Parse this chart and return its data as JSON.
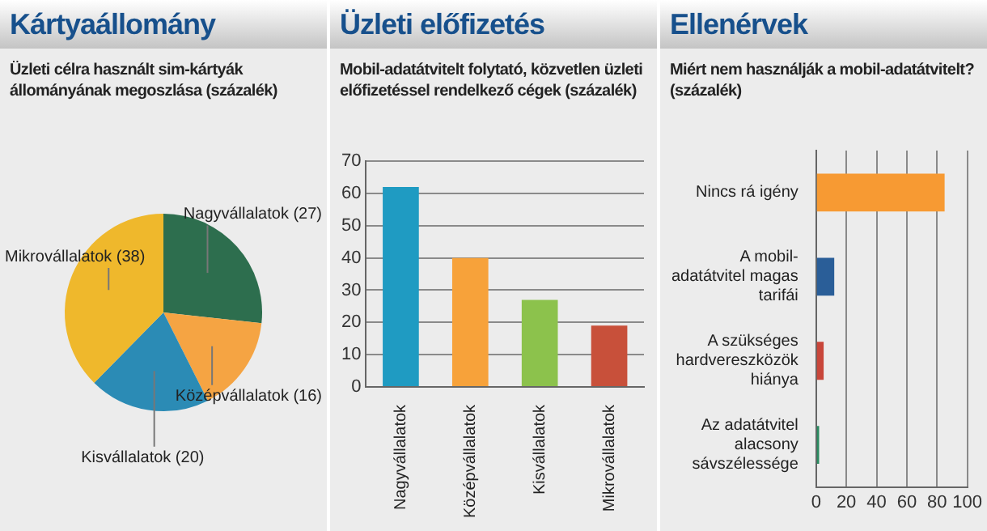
{
  "chart_data": [
    {
      "type": "pie",
      "title": "Kártyaállomány",
      "subtitle": "Üzleti célra használt sim-kártyák állományának megoszlása (százalék)",
      "categories": [
        "Nagyvállalatok (27)",
        "Középvállalatok (16)",
        "Kisvállalatok (20)",
        "Mikrovállalatok (38)"
      ],
      "values": [
        27,
        16,
        20,
        38
      ],
      "colors": [
        "#2d6e4e",
        "#f5a443",
        "#2b8bb5",
        "#efb82c"
      ],
      "legend": false
    },
    {
      "type": "bar",
      "title": "Üzleti előfizetés",
      "subtitle": "Mobil-adatátvitelt folytató, közvetlen üzleti előfizetéssel rendelkező cégek (százalék)",
      "categories": [
        "Nagyvállalatok",
        "Középvállalatok",
        "Kisvállalatok",
        "Mikrovállalatok"
      ],
      "values": [
        62,
        40,
        27,
        19
      ],
      "colors": [
        "#1f9bc2",
        "#f7a23a",
        "#8cc24c",
        "#c8503a"
      ],
      "ylim": [
        0,
        70
      ],
      "yticks": [
        0,
        10,
        20,
        30,
        40,
        50,
        60,
        70
      ],
      "grid": "y",
      "legend": false
    },
    {
      "type": "bar",
      "orientation": "horizontal",
      "title": "Ellenérvek",
      "subtitle": "Miért nem használják a mobil-adatátvitelt? (százalék)",
      "categories": [
        "Nincs rá igény",
        "A mobil-adatátvitel magas tarifái",
        "A szükséges hardvereszközök hiánya",
        "Az adatátvitel alacsony sávszélessége"
      ],
      "values": [
        85,
        12,
        5,
        2
      ],
      "colors": [
        "#f79a33",
        "#2a5e98",
        "#c8463a",
        "#2a8a60"
      ],
      "xlim": [
        0,
        100
      ],
      "xticks": [
        0,
        20,
        40,
        60,
        80,
        100
      ],
      "grid": "x",
      "legend": false
    }
  ]
}
